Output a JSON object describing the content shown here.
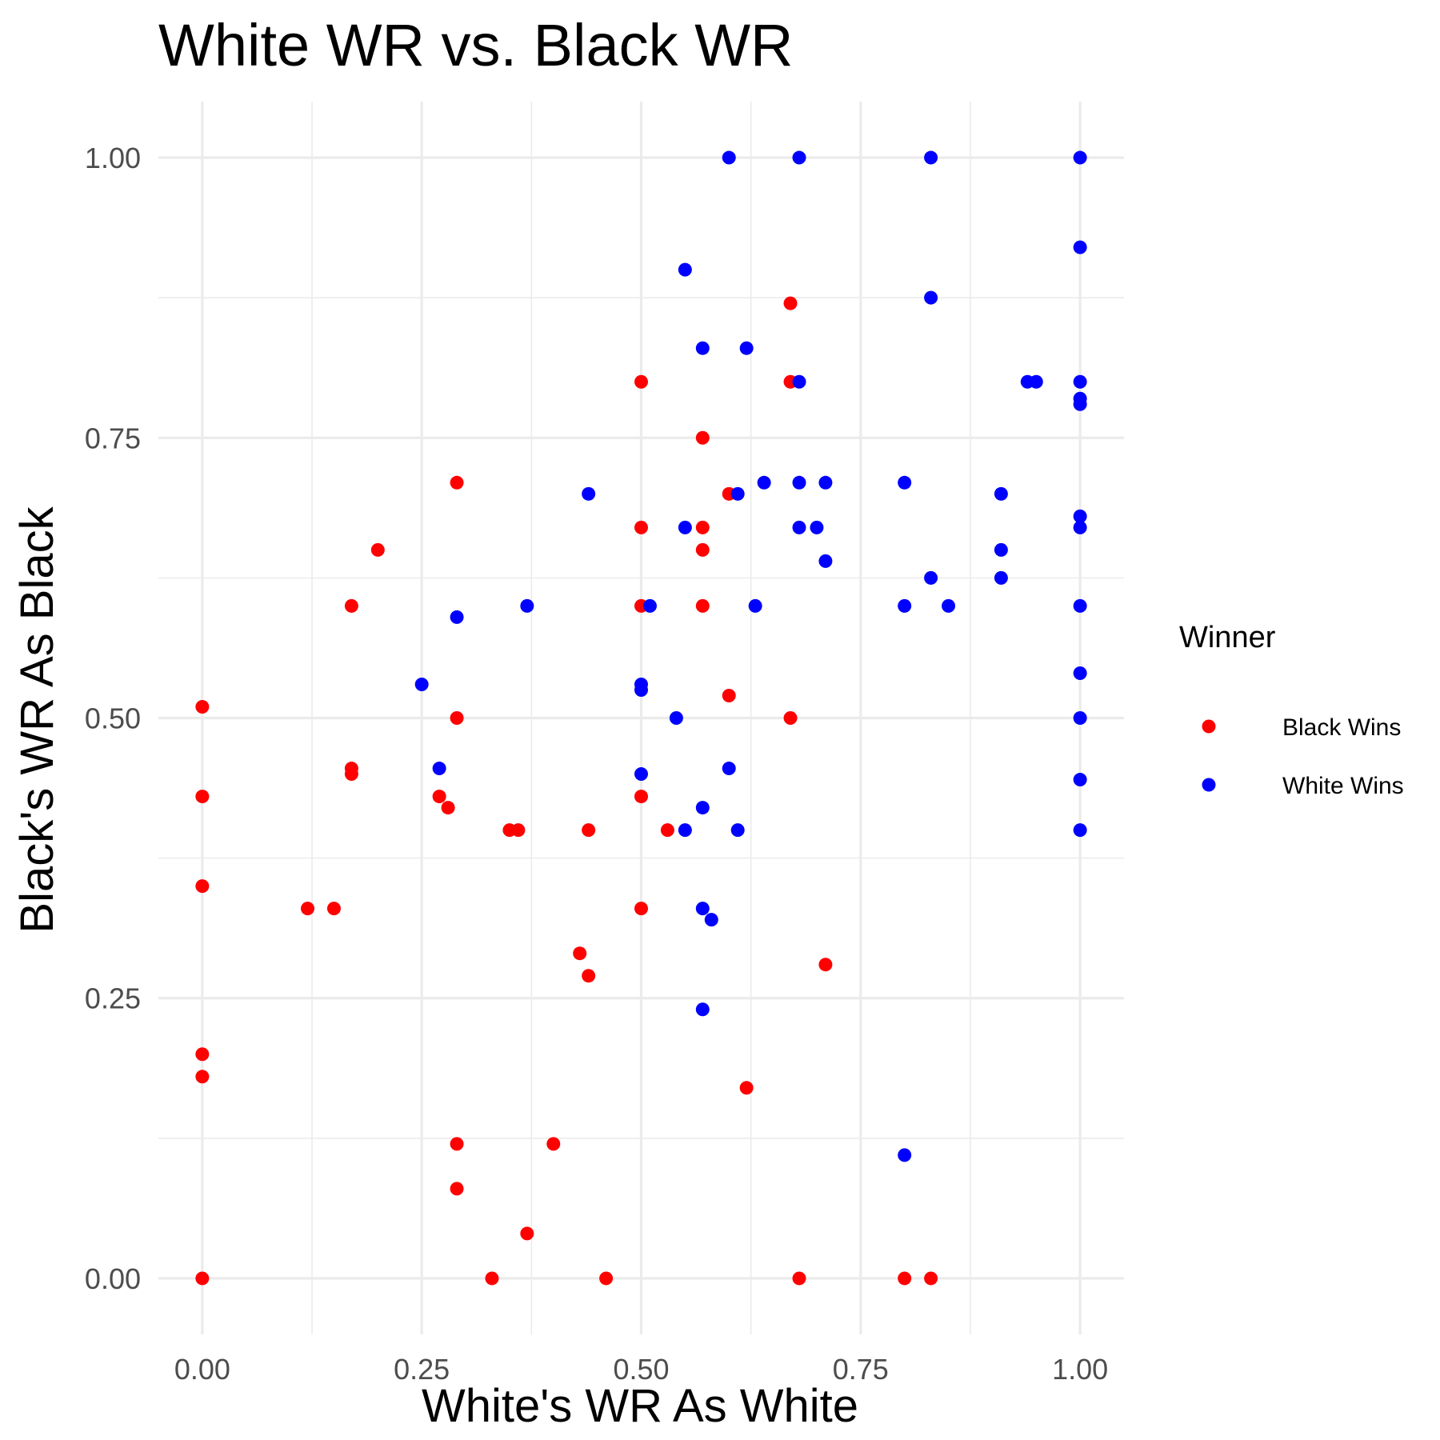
{
  "chart_data": {
    "type": "scatter",
    "title": "White WR vs. Black WR",
    "xlabel": "White's WR As White",
    "ylabel": "Black's WR As Black",
    "xlim": [
      -0.05,
      1.05
    ],
    "ylim": [
      -0.05,
      1.05
    ],
    "x_ticks": [
      0,
      0.25,
      0.5,
      0.75,
      1
    ],
    "x_tick_labels": [
      "0.00",
      "0.25",
      "0.50",
      "0.75",
      "1.00"
    ],
    "y_ticks": [
      0,
      0.25,
      0.5,
      0.75,
      1
    ],
    "y_tick_labels": [
      "0.00",
      "0.25",
      "0.50",
      "0.75",
      "1.00"
    ],
    "grid": true,
    "legend": {
      "title": "Winner",
      "position": "right"
    },
    "series": [
      {
        "name": "Black Wins",
        "color": "#ff0000",
        "points": [
          [
            0.0,
            0.51
          ],
          [
            0.0,
            0.43
          ],
          [
            0.0,
            0.35
          ],
          [
            0.0,
            0.2
          ],
          [
            0.0,
            0.18
          ],
          [
            0.0,
            0.0
          ],
          [
            0.12,
            0.33
          ],
          [
            0.15,
            0.33
          ],
          [
            0.17,
            0.6
          ],
          [
            0.17,
            0.455
          ],
          [
            0.17,
            0.45
          ],
          [
            0.2,
            0.65
          ],
          [
            0.27,
            0.43
          ],
          [
            0.28,
            0.42
          ],
          [
            0.29,
            0.71
          ],
          [
            0.29,
            0.5
          ],
          [
            0.29,
            0.12
          ],
          [
            0.29,
            0.08
          ],
          [
            0.33,
            0.0
          ],
          [
            0.35,
            0.4
          ],
          [
            0.36,
            0.4
          ],
          [
            0.37,
            0.04
          ],
          [
            0.4,
            0.12
          ],
          [
            0.43,
            0.29
          ],
          [
            0.44,
            0.27
          ],
          [
            0.44,
            0.4
          ],
          [
            0.46,
            0.0
          ],
          [
            0.5,
            0.8
          ],
          [
            0.5,
            0.67
          ],
          [
            0.5,
            0.6
          ],
          [
            0.5,
            0.43
          ],
          [
            0.5,
            0.33
          ],
          [
            0.53,
            0.4
          ],
          [
            0.57,
            0.75
          ],
          [
            0.57,
            0.67
          ],
          [
            0.57,
            0.65
          ],
          [
            0.57,
            0.6
          ],
          [
            0.6,
            0.7
          ],
          [
            0.6,
            0.52
          ],
          [
            0.62,
            0.17
          ],
          [
            0.67,
            0.87
          ],
          [
            0.67,
            0.8
          ],
          [
            0.67,
            0.5
          ],
          [
            0.68,
            0.0
          ],
          [
            0.71,
            0.28
          ],
          [
            0.8,
            0.0
          ],
          [
            0.83,
            0.0
          ]
        ]
      },
      {
        "name": "White Wins",
        "color": "#0000ff",
        "points": [
          [
            0.25,
            0.53
          ],
          [
            0.27,
            0.455
          ],
          [
            0.29,
            0.59
          ],
          [
            0.37,
            0.6
          ],
          [
            0.44,
            0.7
          ],
          [
            0.5,
            0.53
          ],
          [
            0.5,
            0.525
          ],
          [
            0.5,
            0.45
          ],
          [
            0.51,
            0.6
          ],
          [
            0.54,
            0.5
          ],
          [
            0.55,
            0.9
          ],
          [
            0.55,
            0.67
          ],
          [
            0.55,
            0.4
          ],
          [
            0.57,
            0.83
          ],
          [
            0.57,
            0.42
          ],
          [
            0.57,
            0.33
          ],
          [
            0.58,
            0.32
          ],
          [
            0.57,
            0.24
          ],
          [
            0.6,
            1.0
          ],
          [
            0.6,
            0.455
          ],
          [
            0.61,
            0.7
          ],
          [
            0.61,
            0.4
          ],
          [
            0.62,
            0.83
          ],
          [
            0.63,
            0.6
          ],
          [
            0.64,
            0.71
          ],
          [
            0.68,
            1.0
          ],
          [
            0.68,
            0.8
          ],
          [
            0.68,
            0.71
          ],
          [
            0.68,
            0.67
          ],
          [
            0.7,
            0.67
          ],
          [
            0.71,
            0.64
          ],
          [
            0.71,
            0.71
          ],
          [
            0.8,
            0.71
          ],
          [
            0.8,
            0.6
          ],
          [
            0.8,
            0.11
          ],
          [
            0.83,
            1.0
          ],
          [
            0.83,
            0.875
          ],
          [
            0.83,
            0.625
          ],
          [
            0.85,
            0.6
          ],
          [
            0.91,
            0.7
          ],
          [
            0.91,
            0.65
          ],
          [
            0.91,
            0.625
          ],
          [
            0.94,
            0.8
          ],
          [
            0.95,
            0.8
          ],
          [
            1.0,
            1.0
          ],
          [
            1.0,
            0.92
          ],
          [
            1.0,
            0.8
          ],
          [
            1.0,
            0.785
          ],
          [
            1.0,
            0.78
          ],
          [
            1.0,
            0.68
          ],
          [
            1.0,
            0.67
          ],
          [
            1.0,
            0.6
          ],
          [
            1.0,
            0.54
          ],
          [
            1.0,
            0.5
          ],
          [
            1.0,
            0.445
          ],
          [
            1.0,
            0.4
          ]
        ]
      }
    ]
  }
}
